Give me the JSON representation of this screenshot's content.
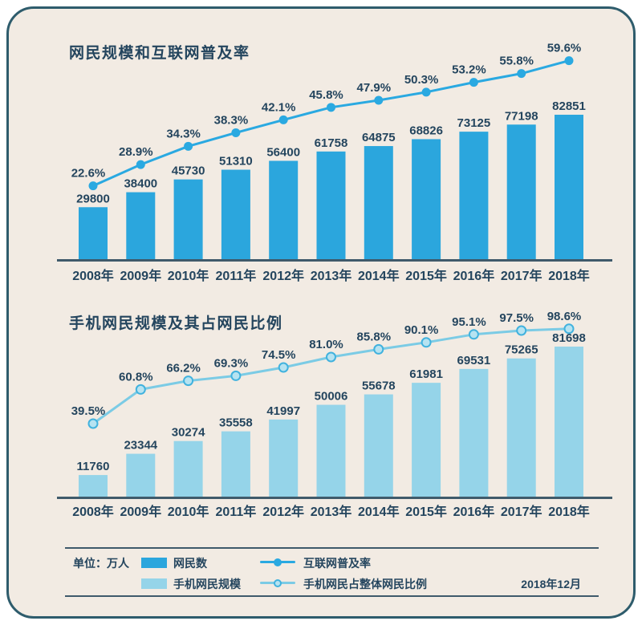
{
  "palette": {
    "page_bg": "#ffffff",
    "card_bg": "#f2ebe3",
    "border": "#2e5c6c",
    "text": "#24455e",
    "axis": "#3f5a6b",
    "bar_internet": "#2ba6dd",
    "line_internet": "#2aa9e1",
    "bar_mobile": "#95d4e9",
    "line_mobile": "#7bcbe5",
    "marker_mobile_fill": "#b6e3f1",
    "marker_mobile_stroke": "#41b2de"
  },
  "chart_data": [
    {
      "type": "bar+line",
      "title": "网民规模和互联网普及率",
      "categories": [
        "2008年",
        "2009年",
        "2010年",
        "2011年",
        "2012年",
        "2013年",
        "2014年",
        "2015年",
        "2016年",
        "2017年",
        "2018年"
      ],
      "unit": "万人",
      "grid": false,
      "series": [
        {
          "name": "网民数",
          "type": "bar",
          "color": "#2ba6dd",
          "values": [
            29800,
            38400,
            45730,
            51310,
            56400,
            61758,
            64875,
            68826,
            73125,
            77198,
            82851
          ]
        },
        {
          "name": "互联网普及率",
          "type": "line",
          "unit": "%",
          "marker": "solid",
          "color": "#2aa9e1",
          "marker_fill": "#2aa9e1",
          "marker_stroke": "#2aa9e1",
          "values": [
            22.6,
            28.9,
            34.3,
            38.3,
            42.1,
            45.8,
            47.9,
            50.3,
            53.2,
            55.8,
            59.6
          ]
        }
      ]
    },
    {
      "type": "bar+line",
      "title": "手机网民规模及其占网民比例",
      "categories": [
        "2008年",
        "2009年",
        "2010年",
        "2011年",
        "2012年",
        "2013年",
        "2014年",
        "2015年",
        "2016年",
        "2017年",
        "2018年"
      ],
      "unit": "万人",
      "grid": false,
      "series": [
        {
          "name": "手机网民规模",
          "type": "bar",
          "color": "#95d4e9",
          "values": [
            11760,
            23344,
            30274,
            35558,
            41997,
            50006,
            55678,
            61981,
            69531,
            75265,
            81698
          ]
        },
        {
          "name": "手机网民占整体网民比例",
          "type": "line",
          "unit": "%",
          "marker": "hollow",
          "color": "#7bcbe5",
          "marker_fill": "#b6e3f1",
          "marker_stroke": "#41b2de",
          "values": [
            39.5,
            60.8,
            66.2,
            69.3,
            74.5,
            81.0,
            85.8,
            90.1,
            95.1,
            97.5,
            98.6
          ]
        }
      ]
    }
  ],
  "legend": {
    "unit_label": "单位：万人",
    "items": [
      {
        "swatch": "bar",
        "color": "#2ba6dd",
        "label": "网民数"
      },
      {
        "swatch": "bar",
        "color": "#95d4e9",
        "label": "手机网民规模"
      },
      {
        "swatch": "line-solid",
        "color": "#2aa9e1",
        "dot_fill": "#2aa9e1",
        "dot_stroke": "#2aa9e1",
        "label": "互联网普及率"
      },
      {
        "swatch": "line-hollow",
        "color": "#7bcbe5",
        "dot_fill": "#b6e3f1",
        "dot_stroke": "#41b2de",
        "label": "手机网民占整体网民比例"
      }
    ],
    "date_label": "2018年12月"
  }
}
